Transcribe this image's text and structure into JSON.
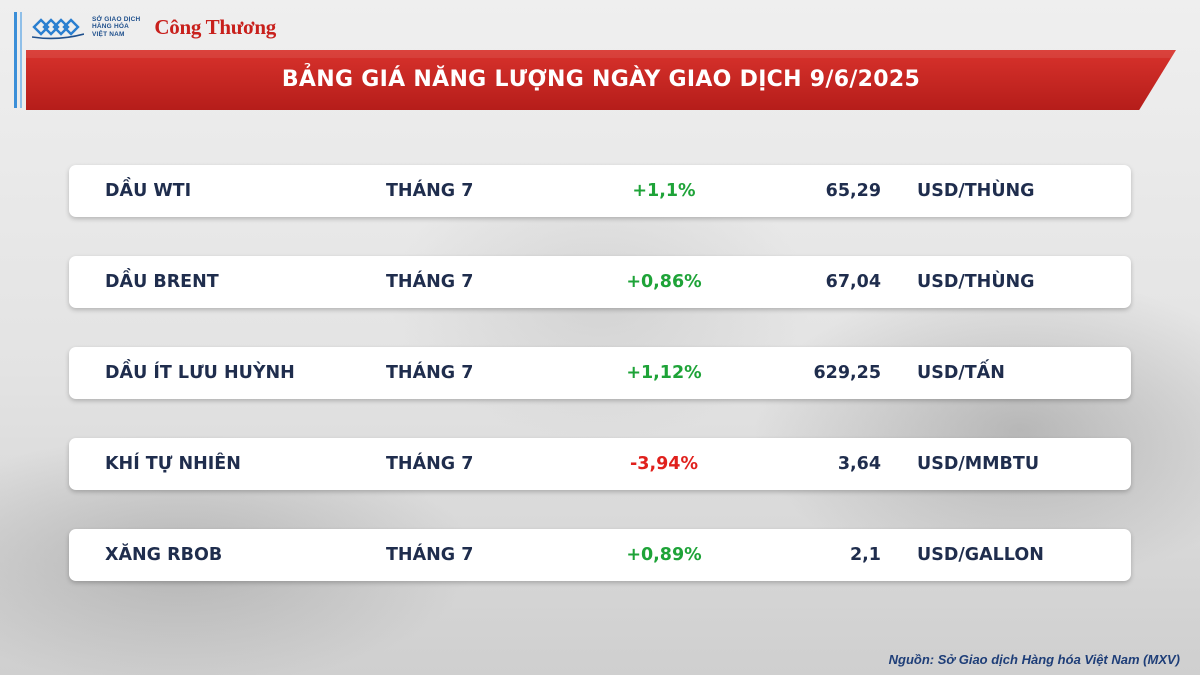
{
  "logos": {
    "mxv_lines": [
      "SỞ GIAO DỊCH",
      "HÀNG HÓA",
      "VIỆT NAM"
    ],
    "congthuong": "Công Thương",
    "icon": "mxv-logo-icon"
  },
  "title": "BẢNG GIÁ NĂNG LƯỢNG NGÀY GIAO DỊCH 9/6/2025",
  "rows": [
    {
      "name": "DẦU WTI",
      "month": "THÁNG 7",
      "change": "+1,1%",
      "price": "65,29",
      "unit": "USD/THÙNG",
      "direction": "up"
    },
    {
      "name": "DẦU BRENT",
      "month": "THÁNG 7",
      "change": "+0,86%",
      "price": "67,04",
      "unit": "USD/THÙNG",
      "direction": "up"
    },
    {
      "name": "DẦU ÍT LƯU HUỲNH",
      "month": "THÁNG 7",
      "change": "+1,12%",
      "price": "629,25",
      "unit": "USD/TẤN",
      "direction": "up"
    },
    {
      "name": "KHÍ TỰ NHIÊN",
      "month": "THÁNG 7",
      "change": "-3,94%",
      "price": "3,64",
      "unit": "USD/MMBTU",
      "direction": "down"
    },
    {
      "name": "XĂNG RBOB",
      "month": "THÁNG 7",
      "change": "+0,89%",
      "price": "2,1",
      "unit": "USD/GALLON",
      "direction": "up"
    }
  ],
  "colors": {
    "up": "#1ea338",
    "down": "#e0201c",
    "banner": "#c8241f",
    "text": "#1f2d4d"
  },
  "source": "Nguồn: Sở Giao dịch Hàng hóa Việt Nam (MXV)"
}
